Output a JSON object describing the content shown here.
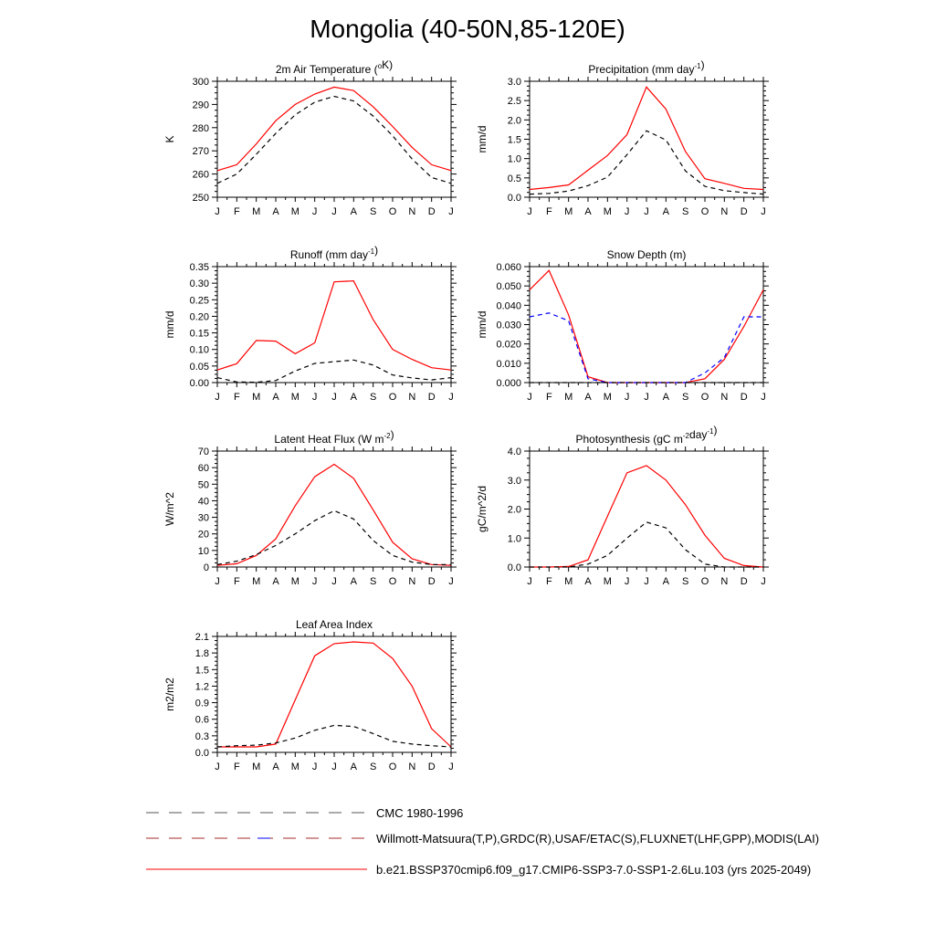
{
  "title": "Mongolia (40-50N,85-120E)",
  "months": [
    "J",
    "F",
    "M",
    "A",
    "M",
    "J",
    "J",
    "A",
    "S",
    "O",
    "N",
    "D",
    "J"
  ],
  "colors": {
    "model": "#ff0000",
    "obs": "#000000",
    "obs_alt": "#0000ff"
  },
  "chart_data": [
    {
      "type": "line",
      "id": "temp",
      "title": {
        "pre": "2m Air Temperature (",
        "sup": "o",
        "post": "K)"
      },
      "ylabel": "K",
      "ylim": [
        250,
        300
      ],
      "yticks": [
        250,
        260,
        270,
        280,
        290,
        300
      ],
      "yticklabels": [
        "250",
        "260",
        "270",
        "280",
        "290",
        "300"
      ],
      "series": [
        {
          "style": "model",
          "values": [
            261.5,
            264.0,
            273.0,
            283.0,
            290.0,
            294.5,
            297.5,
            296.0,
            289.0,
            280.5,
            271.5,
            264.0,
            261.5
          ]
        },
        {
          "style": "obs",
          "values": [
            256.0,
            260.0,
            268.5,
            277.5,
            285.5,
            291.0,
            293.5,
            291.5,
            285.0,
            276.5,
            266.5,
            258.5,
            256.0
          ]
        }
      ]
    },
    {
      "type": "line",
      "id": "precip",
      "title": {
        "pre": "Precipitation (mm day",
        "sup": "-1",
        "post": ")"
      },
      "ylabel": "mm/d",
      "ylim": [
        0,
        3.0
      ],
      "yticks": [
        0,
        0.5,
        1.0,
        1.5,
        2.0,
        2.5,
        3.0
      ],
      "yticklabels": [
        "0.0",
        "0.5",
        "1.0",
        "1.5",
        "2.0",
        "2.5",
        "3.0"
      ],
      "series": [
        {
          "style": "model",
          "values": [
            0.2,
            0.25,
            0.32,
            0.7,
            1.08,
            1.62,
            2.85,
            2.28,
            1.18,
            0.48,
            0.36,
            0.23,
            0.2
          ]
        },
        {
          "style": "obs",
          "values": [
            0.08,
            0.1,
            0.16,
            0.3,
            0.52,
            1.1,
            1.72,
            1.48,
            0.68,
            0.28,
            0.17,
            0.12,
            0.08
          ]
        }
      ]
    },
    {
      "type": "line",
      "id": "runoff",
      "title": {
        "pre": "Runoff (mm day",
        "sup": "-1",
        "post": ")"
      },
      "ylabel": "mm/d",
      "ylim": [
        0,
        0.35
      ],
      "yticks": [
        0,
        0.05,
        0.1,
        0.15,
        0.2,
        0.25,
        0.3,
        0.35
      ],
      "yticklabels": [
        "0.00",
        "0.05",
        "0.10",
        "0.15",
        "0.20",
        "0.25",
        "0.30",
        "0.35"
      ],
      "series": [
        {
          "style": "model",
          "values": [
            0.038,
            0.057,
            0.127,
            0.125,
            0.087,
            0.12,
            0.304,
            0.307,
            0.19,
            0.1,
            0.07,
            0.045,
            0.038
          ]
        },
        {
          "style": "obs",
          "values": [
            0.015,
            0.002,
            0.001,
            0.006,
            0.035,
            0.058,
            0.063,
            0.068,
            0.053,
            0.023,
            0.014,
            0.008,
            0.015
          ]
        }
      ]
    },
    {
      "type": "line",
      "id": "snow",
      "title": {
        "pre": "Snow Depth (m)",
        "sup": "",
        "post": ""
      },
      "ylabel": "mm/d",
      "ylim": [
        0,
        0.06
      ],
      "yticks": [
        0,
        0.01,
        0.02,
        0.03,
        0.04,
        0.05,
        0.06
      ],
      "yticklabels": [
        "0.000",
        "0.010",
        "0.020",
        "0.030",
        "0.040",
        "0.050",
        "0.060"
      ],
      "series": [
        {
          "style": "model",
          "values": [
            0.048,
            0.058,
            0.035,
            0.003,
            0.0,
            0.0,
            0.0,
            0.0,
            0.0,
            0.002,
            0.012,
            0.029,
            0.048
          ]
        },
        {
          "style": "obs_alt",
          "values": [
            0.034,
            0.036,
            0.032,
            0.002,
            0.0,
            0.0,
            0.0,
            0.0,
            0.0,
            0.005,
            0.013,
            0.034,
            0.034
          ]
        },
        {
          "style": "obs",
          "values": [
            0,
            0,
            0,
            0,
            0,
            0,
            0,
            0,
            0,
            0,
            0,
            0,
            0
          ]
        }
      ]
    },
    {
      "type": "line",
      "id": "lhf",
      "title": {
        "pre": "Latent Heat Flux (W m",
        "sup": "-2",
        "post": ")"
      },
      "ylabel": "W/m^2",
      "ylim": [
        0,
        70
      ],
      "yticks": [
        0,
        10,
        20,
        30,
        40,
        50,
        60,
        70
      ],
      "yticklabels": [
        "0",
        "10",
        "20",
        "30",
        "40",
        "50",
        "60",
        "70"
      ],
      "series": [
        {
          "style": "model",
          "values": [
            1.0,
            2.0,
            7.0,
            17.0,
            37.0,
            54.5,
            62.0,
            53.5,
            34.5,
            15.0,
            5.0,
            1.5,
            1.0
          ]
        },
        {
          "style": "obs",
          "values": [
            1.5,
            3.5,
            7.5,
            13.0,
            20.0,
            28.0,
            34.0,
            29.0,
            16.0,
            7.0,
            3.0,
            1.5,
            1.5
          ]
        }
      ]
    },
    {
      "type": "line",
      "id": "photo",
      "title": {
        "pre": "Photosynthesis (gC m",
        "sup": "-2",
        "post": "day",
        "sup2": "-1",
        "post2": ")"
      },
      "ylabel": "gC/m^2/d",
      "ylim": [
        0,
        4.0
      ],
      "yticks": [
        0,
        1.0,
        2.0,
        3.0,
        4.0
      ],
      "yticklabels": [
        "0.0",
        "1.0",
        "2.0",
        "3.0",
        "4.0"
      ],
      "series": [
        {
          "style": "model",
          "values": [
            0.0,
            0.0,
            0.02,
            0.25,
            1.75,
            3.25,
            3.5,
            3.0,
            2.15,
            1.1,
            0.3,
            0.05,
            0.0
          ]
        },
        {
          "style": "obs",
          "values": [
            0.0,
            0.0,
            0.0,
            0.1,
            0.4,
            1.0,
            1.55,
            1.35,
            0.6,
            0.1,
            0.0,
            0.0,
            0.0
          ]
        }
      ]
    },
    {
      "type": "line",
      "id": "lai",
      "title": {
        "pre": "Leaf Area Index",
        "sup": "",
        "post": ""
      },
      "ylabel": "m2/m2",
      "ylim": [
        0,
        2.1
      ],
      "yticks": [
        0,
        0.3,
        0.6,
        0.9,
        1.2,
        1.5,
        1.8,
        2.1
      ],
      "yticklabels": [
        "0.0",
        "0.3",
        "0.6",
        "0.9",
        "1.2",
        "1.5",
        "1.8",
        "2.1"
      ],
      "series": [
        {
          "style": "model",
          "values": [
            0.1,
            0.1,
            0.1,
            0.15,
            0.95,
            1.75,
            1.97,
            2.0,
            1.98,
            1.7,
            1.2,
            0.43,
            0.1
          ]
        },
        {
          "style": "obs",
          "values": [
            0.1,
            0.12,
            0.13,
            0.17,
            0.26,
            0.4,
            0.49,
            0.47,
            0.34,
            0.2,
            0.15,
            0.12,
            0.1
          ]
        }
      ]
    }
  ],
  "legend": [
    {
      "style": "cmc",
      "label": "CMC 1980-1996"
    },
    {
      "style": "willmott",
      "label": "Willmott-Matsuura(T,P),GRDC(R),USAF/ETAC(S),FLUXNET(LHF,GPP),MODIS(LAI)"
    },
    {
      "style": "model",
      "label": "b.e21.BSSP370cmip6.f09_g17.CMIP6-SSP3-7.0-SSP1-2.6Lu.103 (yrs 2025-2049)"
    }
  ]
}
